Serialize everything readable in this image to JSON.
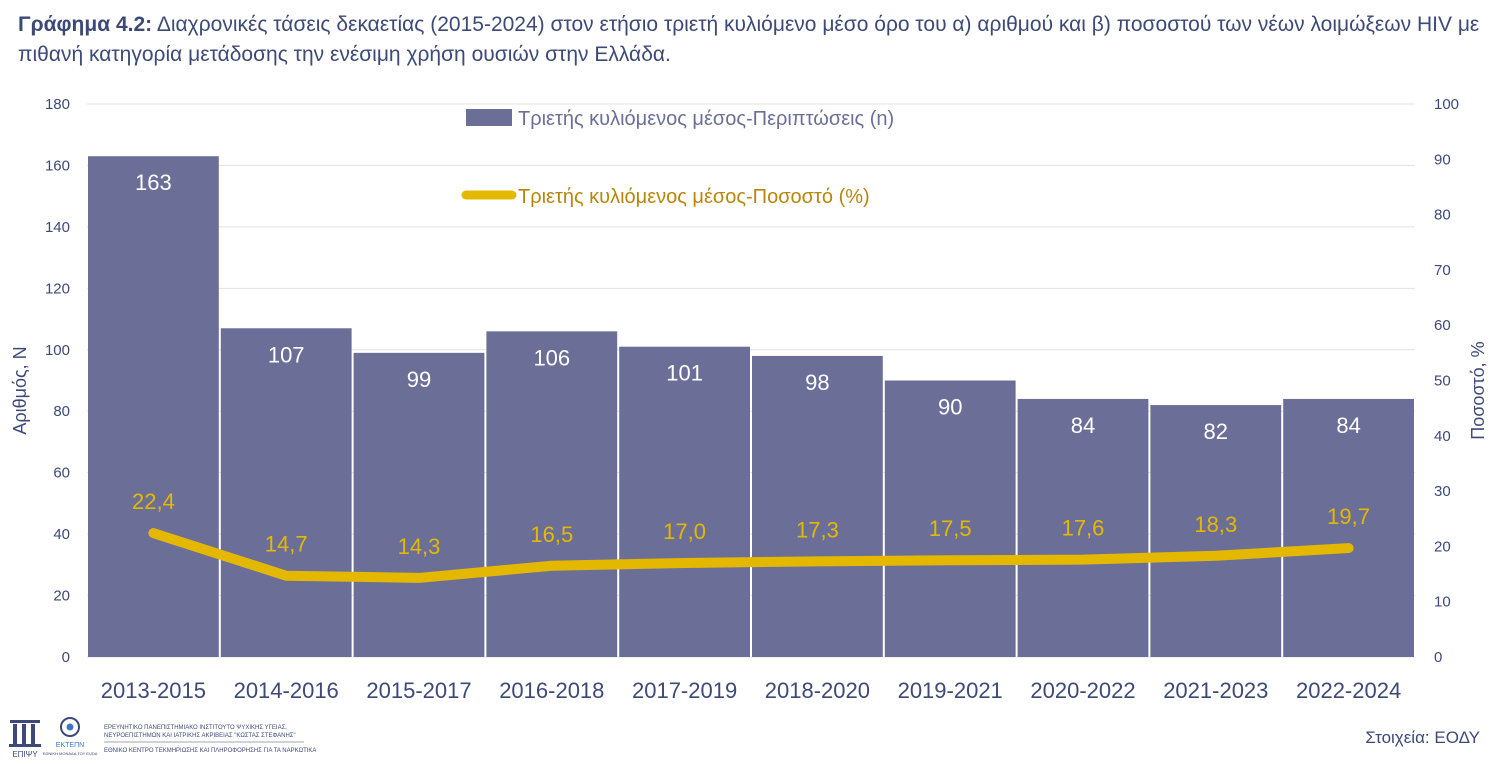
{
  "caption": {
    "lead": "Γράφημα 4.2:",
    "text": "Διαχρονικές τάσεις δεκαετίας (2015-2024) στον ετήσιο τριετή κυλιόμενο μέσο όρο του α) αριθμού και β) ποσοστού των νέων λοιμώξεων HIV με πιθανή κατηγορία μετάδοσης την ενέσιμη χρήση ουσιών στην Ελλάδα."
  },
  "chart_data": {
    "type": "bar",
    "categories": [
      "2013-2015",
      "2014-2016",
      "2015-2017",
      "2016-2018",
      "2017-2019",
      "2018-2020",
      "2019-2021",
      "2020-2022",
      "2021-2023",
      "2022-2024"
    ],
    "series": [
      {
        "name": "Τριετής κυλιόμενος μέσος-Περιπτώσεις (n)",
        "type": "bar",
        "axis": "left",
        "color": "#6b6f98",
        "values": [
          163,
          107,
          99,
          106,
          101,
          98,
          90,
          84,
          82,
          84
        ],
        "labels": [
          "163",
          "107",
          "99",
          "106",
          "101",
          "98",
          "90",
          "84",
          "82",
          "84"
        ]
      },
      {
        "name": "Τριετής κυλιόμενος μέσος-Ποσοστό (%)",
        "type": "line",
        "axis": "right",
        "color": "#e5b800",
        "values": [
          22.4,
          14.7,
          14.3,
          16.5,
          17.0,
          17.3,
          17.5,
          17.6,
          18.3,
          19.7
        ],
        "labels": [
          "22,4",
          "14,7",
          "14,3",
          "16,5",
          "17,0",
          "17,3",
          "17,5",
          "17,6",
          "18,3",
          "19,7"
        ]
      }
    ],
    "ylabel": "Αριθμός, Ν",
    "y2label": "Ποσοστό, %",
    "ylim": [
      0,
      180
    ],
    "y2lim": [
      0,
      100
    ],
    "yticks": [
      "0",
      "20",
      "40",
      "60",
      "80",
      "100",
      "120",
      "140",
      "160",
      "180"
    ],
    "y2ticks": [
      "0",
      "10",
      "20",
      "30",
      "40",
      "50",
      "60",
      "70",
      "80",
      "90",
      "100"
    ],
    "grid": true,
    "legend_position": "top-center"
  },
  "logos": {
    "epipsy_text": "ΕΠΙΨΥ",
    "ektepn_text": "ΕΚΤΕΠΝ",
    "ektepn_sub": "ΕΘΝΙΚΗ ΜΟΝΑΔΑ ΤΟΥ EUDA",
    "institute_line1": "ΕΡΕΥΝΗΤΙΚΟ ΠΑΝΕΠΙΣΤΗΜΙΑΚΟ ΙΝΣΤΙΤΟΥΤΟ ΨΥΧΙΚΗΣ ΥΓΕΙΑΣ,",
    "institute_line2": "ΝΕΥΡΟΕΠΙΣΤΗΜΩΝ ΚΑΙ ΙΑΤΡΙΚΗΣ ΑΚΡΙΒΕΙΑΣ \"ΚΩΣΤΑΣ ΣΤΕΦΑΝΗΣ\"",
    "institute_line3": "ΕΘΝΙΚΟ ΚΕΝΤΡΟ ΤΕΚΜΗΡΙΩΣΗΣ ΚΑΙ ΠΛΗΡΟΦΟΡΗΣΗΣ ΓΙΑ ΤΑ ΝΑΡΚΩΤΙΚΑ"
  },
  "source": "Στοιχεία: ΕΟΔΥ"
}
